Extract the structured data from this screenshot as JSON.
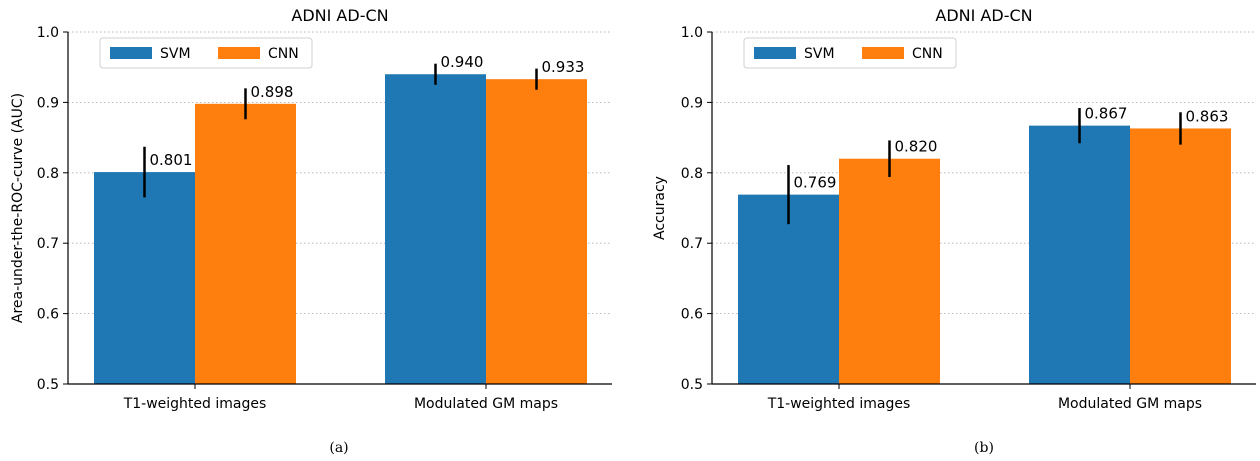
{
  "colors": {
    "svm": "#1f77b4",
    "cnn": "#ff7f0e",
    "grid": "#b0b0b0",
    "errorbar": "#000000"
  },
  "chart_data": [
    {
      "type": "bar",
      "title": "ADNI AD-CN",
      "ylabel": "Area-under-the-ROC-curve (AUC)",
      "xlabel": "",
      "ylim": [
        0.5,
        1.0
      ],
      "yticks": [
        "0.5",
        "0.6",
        "0.7",
        "0.8",
        "0.9",
        "1.0"
      ],
      "categories": [
        "T1-weighted images",
        "Modulated GM maps"
      ],
      "grid": "horizontal dotted",
      "legend": "top-left",
      "caption": "(a)",
      "series": [
        {
          "name": "SVM",
          "values": [
            0.801,
            0.94
          ],
          "labels": [
            "0.801",
            "0.940"
          ],
          "err": [
            0.036,
            0.015
          ]
        },
        {
          "name": "CNN",
          "values": [
            0.898,
            0.933
          ],
          "labels": [
            "0.898",
            "0.933"
          ],
          "err": [
            0.022,
            0.015
          ]
        }
      ]
    },
    {
      "type": "bar",
      "title": "ADNI AD-CN",
      "ylabel": "Accuracy",
      "xlabel": "",
      "ylim": [
        0.5,
        1.0
      ],
      "yticks": [
        "0.5",
        "0.6",
        "0.7",
        "0.8",
        "0.9",
        "1.0"
      ],
      "categories": [
        "T1-weighted images",
        "Modulated GM maps"
      ],
      "grid": "horizontal dotted",
      "legend": "top-left",
      "caption": "(b)",
      "series": [
        {
          "name": "SVM",
          "values": [
            0.769,
            0.867
          ],
          "labels": [
            "0.769",
            "0.867"
          ],
          "err": [
            0.042,
            0.025
          ]
        },
        {
          "name": "CNN",
          "values": [
            0.82,
            0.863
          ],
          "labels": [
            "0.820",
            "0.863"
          ],
          "err": [
            0.026,
            0.023
          ]
        }
      ]
    }
  ]
}
